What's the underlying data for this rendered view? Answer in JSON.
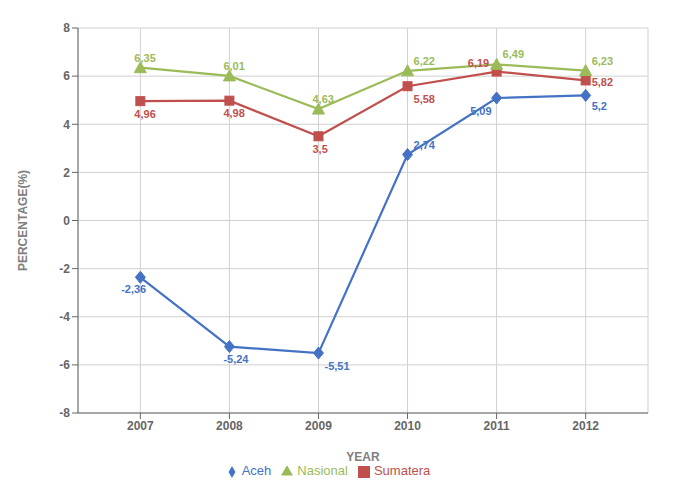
{
  "chart_data": {
    "type": "line",
    "x": [
      2007,
      2008,
      2009,
      2010,
      2011,
      2012
    ],
    "xlim": [
      2006.3,
      2012.7
    ],
    "xticks": [
      2007,
      2008,
      2009,
      2010,
      2011,
      2012
    ],
    "ylim": [
      -8,
      8
    ],
    "yticks": [
      -8,
      -6,
      -4,
      -2,
      0,
      2,
      4,
      6,
      8
    ],
    "xlabel": "YEAR",
    "ylabel": "PERCENTAGE(%)",
    "grid": true,
    "legend": "bottom",
    "data_labels": true,
    "series": [
      {
        "name": "Aceh",
        "color": "#4472C4",
        "marker": "diamond",
        "values": [
          -2.36,
          -5.24,
          -5.51,
          2.74,
          5.09,
          5.2
        ],
        "value_labels": [
          "-2,36",
          "-5,24",
          "-5,51",
          "2,74",
          "5,09",
          "5,2"
        ]
      },
      {
        "name": "Sumatera",
        "color": "#C0504D",
        "marker": "square",
        "values": [
          4.96,
          4.98,
          3.5,
          5.58,
          6.19,
          5.82
        ],
        "value_labels": [
          "4,96",
          "4,98",
          "3,5",
          "5,58",
          "6,19",
          "5,82"
        ]
      },
      {
        "name": "Nasional",
        "color": "#9BBB59",
        "marker": "triangle",
        "values": [
          6.35,
          6.01,
          4.63,
          6.22,
          6.49,
          6.23
        ],
        "value_labels": [
          "6,35",
          "6,01",
          "4,63",
          "6,22",
          "6,49",
          "6,23"
        ]
      }
    ]
  }
}
